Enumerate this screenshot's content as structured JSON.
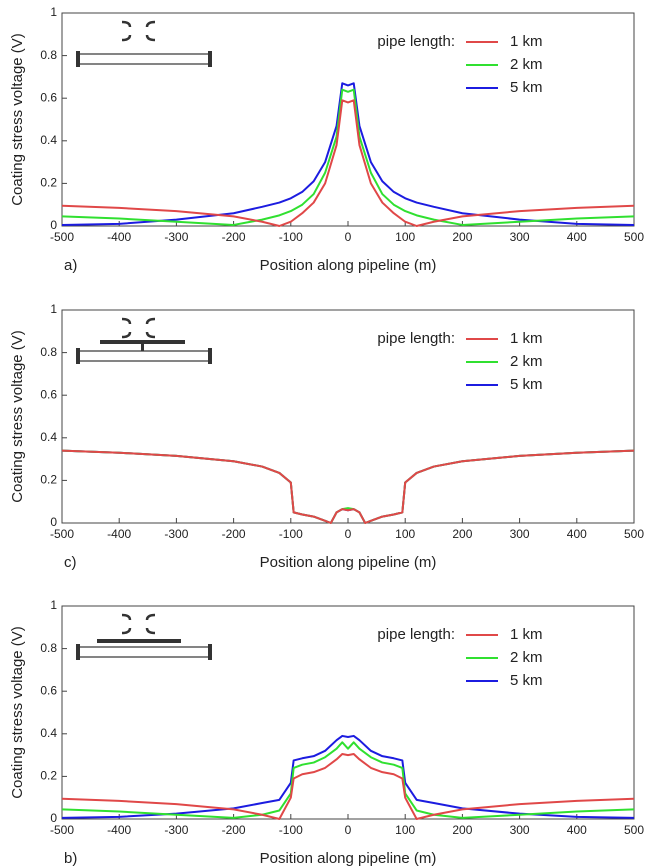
{
  "chart_data": [
    {
      "type": "line",
      "panel_label": "a)",
      "x_label": "Position along pipeline (m)",
      "y_label": "Coating stress voltage (V)",
      "legend_title": "pipe length:",
      "x": [
        -500,
        -400,
        -300,
        -200,
        -150,
        -120,
        -100,
        -80,
        -60,
        -40,
        -20,
        -10,
        0,
        10,
        20,
        40,
        60,
        80,
        100,
        120,
        150,
        200,
        300,
        400,
        500
      ],
      "series": [
        {
          "name": "1 km",
          "color": "#e04848",
          "values": [
            0.095,
            0.085,
            0.07,
            0.045,
            0.02,
            0.0,
            0.02,
            0.06,
            0.11,
            0.2,
            0.38,
            0.59,
            0.58,
            0.59,
            0.38,
            0.2,
            0.11,
            0.06,
            0.02,
            0.0,
            0.02,
            0.045,
            0.07,
            0.085,
            0.095
          ]
        },
        {
          "name": "2 km",
          "color": "#30e030",
          "values": [
            0.045,
            0.035,
            0.02,
            0.005,
            0.03,
            0.05,
            0.07,
            0.1,
            0.15,
            0.25,
            0.42,
            0.64,
            0.63,
            0.64,
            0.42,
            0.25,
            0.15,
            0.1,
            0.07,
            0.05,
            0.03,
            0.005,
            0.02,
            0.035,
            0.045
          ]
        },
        {
          "name": "5 km",
          "color": "#1c1ce0",
          "values": [
            0.005,
            0.01,
            0.03,
            0.06,
            0.09,
            0.11,
            0.13,
            0.16,
            0.21,
            0.3,
            0.47,
            0.67,
            0.66,
            0.67,
            0.47,
            0.3,
            0.21,
            0.16,
            0.13,
            0.11,
            0.09,
            0.06,
            0.03,
            0.01,
            0.005
          ]
        }
      ],
      "xlim": [
        -500,
        500
      ],
      "xticks": [
        -500,
        -400,
        -300,
        -200,
        -100,
        0,
        100,
        200,
        300,
        400,
        500
      ],
      "ylim": [
        0,
        1
      ],
      "yticks": [
        0,
        0.2,
        0.4,
        0.6,
        0.8,
        1
      ],
      "grid": false,
      "legend": "upper right"
    },
    {
      "type": "line",
      "panel_label": "c)",
      "x_label": "Position along pipeline (m)",
      "y_label": "Coating stress voltage (V)",
      "legend_title": "pipe length:",
      "x": [
        -500,
        -400,
        -300,
        -200,
        -150,
        -120,
        -100,
        -95,
        -80,
        -60,
        -40,
        -30,
        -20,
        -10,
        0,
        10,
        20,
        30,
        40,
        60,
        80,
        95,
        100,
        120,
        150,
        200,
        300,
        400,
        500
      ],
      "series": [
        {
          "name": "1 km",
          "color": "#e04848",
          "values": [
            0.34,
            0.33,
            0.315,
            0.29,
            0.265,
            0.235,
            0.19,
            0.05,
            0.04,
            0.03,
            0.01,
            0.0,
            0.05,
            0.065,
            0.06,
            0.065,
            0.05,
            0.0,
            0.01,
            0.03,
            0.04,
            0.05,
            0.19,
            0.235,
            0.265,
            0.29,
            0.315,
            0.33,
            0.34
          ]
        },
        {
          "name": "2 km",
          "color": "#30e030",
          "values": [
            0.34,
            0.33,
            0.315,
            0.29,
            0.265,
            0.235,
            0.19,
            0.05,
            0.04,
            0.03,
            0.01,
            0.0,
            0.05,
            0.065,
            0.07,
            0.065,
            0.05,
            0.0,
            0.01,
            0.03,
            0.04,
            0.05,
            0.19,
            0.235,
            0.265,
            0.29,
            0.315,
            0.33,
            0.34
          ]
        },
        {
          "name": "5 km",
          "color": "#1c1ce0",
          "values": [
            0.34,
            0.33,
            0.315,
            0.29,
            0.265,
            0.235,
            0.19,
            0.05,
            0.04,
            0.03,
            0.01,
            0.0,
            0.05,
            0.065,
            0.06,
            0.065,
            0.05,
            0.0,
            0.01,
            0.03,
            0.04,
            0.05,
            0.19,
            0.235,
            0.265,
            0.29,
            0.315,
            0.33,
            0.34
          ]
        }
      ],
      "xlim": [
        -500,
        500
      ],
      "xticks": [
        -500,
        -400,
        -300,
        -200,
        -100,
        0,
        100,
        200,
        300,
        400,
        500
      ],
      "ylim": [
        0,
        1
      ],
      "yticks": [
        0,
        0.2,
        0.4,
        0.6,
        0.8,
        1
      ],
      "grid": false,
      "legend": "upper right"
    },
    {
      "type": "line",
      "panel_label": "b)",
      "x_label": "Position along pipeline (m)",
      "y_label": "Coating stress voltage (V)",
      "legend_title": "pipe length:",
      "x": [
        -500,
        -400,
        -300,
        -200,
        -150,
        -120,
        -100,
        -95,
        -80,
        -60,
        -40,
        -20,
        -10,
        0,
        10,
        20,
        40,
        60,
        80,
        95,
        100,
        120,
        150,
        200,
        300,
        400,
        500
      ],
      "series": [
        {
          "name": "1 km",
          "color": "#e04848",
          "values": [
            0.095,
            0.085,
            0.07,
            0.045,
            0.02,
            0.0,
            0.1,
            0.19,
            0.21,
            0.22,
            0.24,
            0.28,
            0.305,
            0.3,
            0.305,
            0.28,
            0.24,
            0.22,
            0.21,
            0.19,
            0.1,
            0.0,
            0.02,
            0.045,
            0.07,
            0.085,
            0.095
          ]
        },
        {
          "name": "2 km",
          "color": "#30e030",
          "values": [
            0.045,
            0.035,
            0.02,
            0.005,
            0.02,
            0.04,
            0.12,
            0.24,
            0.255,
            0.265,
            0.29,
            0.33,
            0.36,
            0.33,
            0.36,
            0.33,
            0.29,
            0.265,
            0.255,
            0.24,
            0.12,
            0.04,
            0.02,
            0.005,
            0.02,
            0.035,
            0.045
          ]
        },
        {
          "name": "5 km",
          "color": "#1c1ce0",
          "values": [
            0.005,
            0.01,
            0.025,
            0.05,
            0.075,
            0.09,
            0.17,
            0.275,
            0.285,
            0.295,
            0.32,
            0.37,
            0.39,
            0.385,
            0.39,
            0.37,
            0.32,
            0.295,
            0.285,
            0.275,
            0.17,
            0.09,
            0.075,
            0.05,
            0.025,
            0.01,
            0.005
          ]
        }
      ],
      "xlim": [
        -500,
        500
      ],
      "xticks": [
        -500,
        -400,
        -300,
        -200,
        -100,
        0,
        100,
        200,
        300,
        400,
        500
      ],
      "ylim": [
        0,
        1
      ],
      "yticks": [
        0,
        0.2,
        0.4,
        0.6,
        0.8,
        1
      ],
      "grid": false,
      "legend": "upper right"
    }
  ]
}
